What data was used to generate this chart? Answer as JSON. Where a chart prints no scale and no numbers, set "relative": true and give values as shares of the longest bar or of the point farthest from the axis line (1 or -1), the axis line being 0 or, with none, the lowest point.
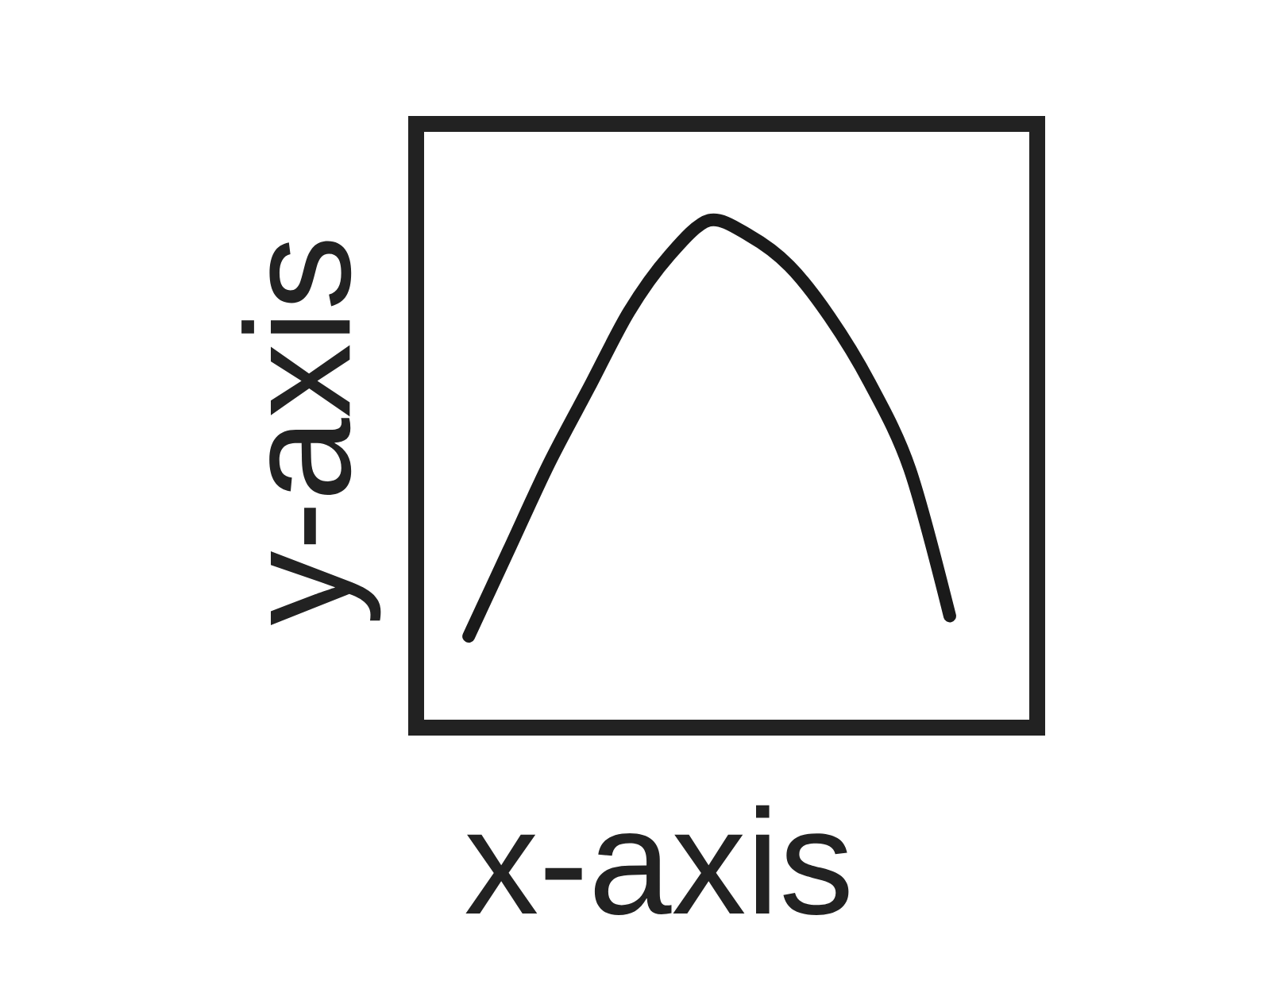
{
  "chart_data": {
    "type": "line",
    "xlabel": "x-axis",
    "ylabel": "y-axis",
    "relative": true,
    "categories": [
      null,
      null,
      null,
      null,
      null,
      null,
      null,
      null,
      null,
      null,
      null,
      null,
      null
    ],
    "values": [
      0.18,
      0.35,
      0.52,
      0.67,
      0.82,
      0.93,
      1.0,
      0.97,
      0.91,
      0.81,
      0.68,
      0.51,
      0.22
    ],
    "color": "#1a1a1a"
  }
}
